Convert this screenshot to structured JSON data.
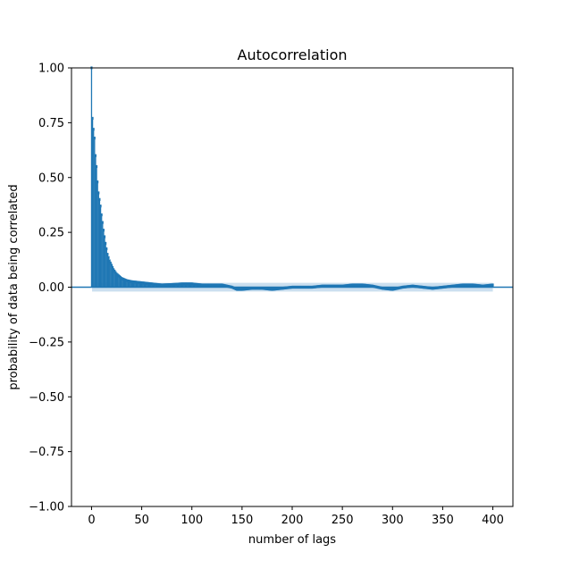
{
  "chart_data": {
    "type": "bar",
    "title": "Autocorrelation",
    "xlabel": "number of lags",
    "ylabel": "probability of data being correlated",
    "xlim": [
      -20,
      420
    ],
    "ylim": [
      -1.0,
      1.0
    ],
    "xticks": [
      0,
      50,
      100,
      150,
      200,
      250,
      300,
      350,
      400
    ],
    "yticks": [
      -1.0,
      -0.75,
      -0.5,
      -0.25,
      0.0,
      0.25,
      0.5,
      0.75,
      1.0
    ],
    "ytick_labels": [
      "−1.00",
      "−0.75",
      "−0.50",
      "−0.25",
      "0.00",
      "0.25",
      "0.50",
      "0.75",
      "1.00"
    ],
    "xtick_labels": [
      "0",
      "50",
      "100",
      "150",
      "200",
      "250",
      "300",
      "350",
      "400"
    ],
    "grid": false,
    "legend": false,
    "bar_color": "#1f77b4",
    "confidence_band_color": "#a9c9e4",
    "zero_line_color": "#1f77b4",
    "max_lag": 400,
    "key_lags": [
      [
        0,
        1.0
      ],
      [
        1,
        0.77
      ],
      [
        2,
        0.72
      ],
      [
        3,
        0.68
      ],
      [
        4,
        0.6
      ],
      [
        5,
        0.55
      ],
      [
        6,
        0.48
      ],
      [
        7,
        0.43
      ],
      [
        8,
        0.4
      ],
      [
        9,
        0.37
      ],
      [
        10,
        0.33
      ],
      [
        12,
        0.26
      ],
      [
        14,
        0.2
      ],
      [
        16,
        0.15
      ],
      [
        18,
        0.12
      ],
      [
        20,
        0.1
      ],
      [
        22,
        0.08
      ],
      [
        25,
        0.06
      ],
      [
        30,
        0.04
      ],
      [
        35,
        0.03
      ],
      [
        40,
        0.025
      ],
      [
        50,
        0.02
      ],
      [
        60,
        0.015
      ],
      [
        70,
        0.01
      ],
      [
        80,
        0.012
      ],
      [
        90,
        0.015
      ],
      [
        100,
        0.015
      ],
      [
        110,
        0.01
      ],
      [
        120,
        0.01
      ],
      [
        130,
        0.01
      ],
      [
        140,
        0.0
      ],
      [
        145,
        -0.01
      ],
      [
        150,
        -0.01
      ],
      [
        160,
        -0.005
      ],
      [
        170,
        -0.005
      ],
      [
        180,
        -0.01
      ],
      [
        190,
        -0.005
      ],
      [
        200,
        0.0
      ],
      [
        210,
        0.0
      ],
      [
        220,
        0.0
      ],
      [
        230,
        0.005
      ],
      [
        240,
        0.005
      ],
      [
        250,
        0.005
      ],
      [
        260,
        0.01
      ],
      [
        270,
        0.01
      ],
      [
        280,
        0.005
      ],
      [
        290,
        -0.005
      ],
      [
        300,
        -0.01
      ],
      [
        310,
        0.0
      ],
      [
        320,
        0.005
      ],
      [
        330,
        0.0
      ],
      [
        340,
        -0.005
      ],
      [
        350,
        0.0
      ],
      [
        360,
        0.005
      ],
      [
        370,
        0.01
      ],
      [
        380,
        0.01
      ],
      [
        390,
        0.005
      ],
      [
        400,
        0.01
      ]
    ],
    "confidence_band": 0.02
  }
}
